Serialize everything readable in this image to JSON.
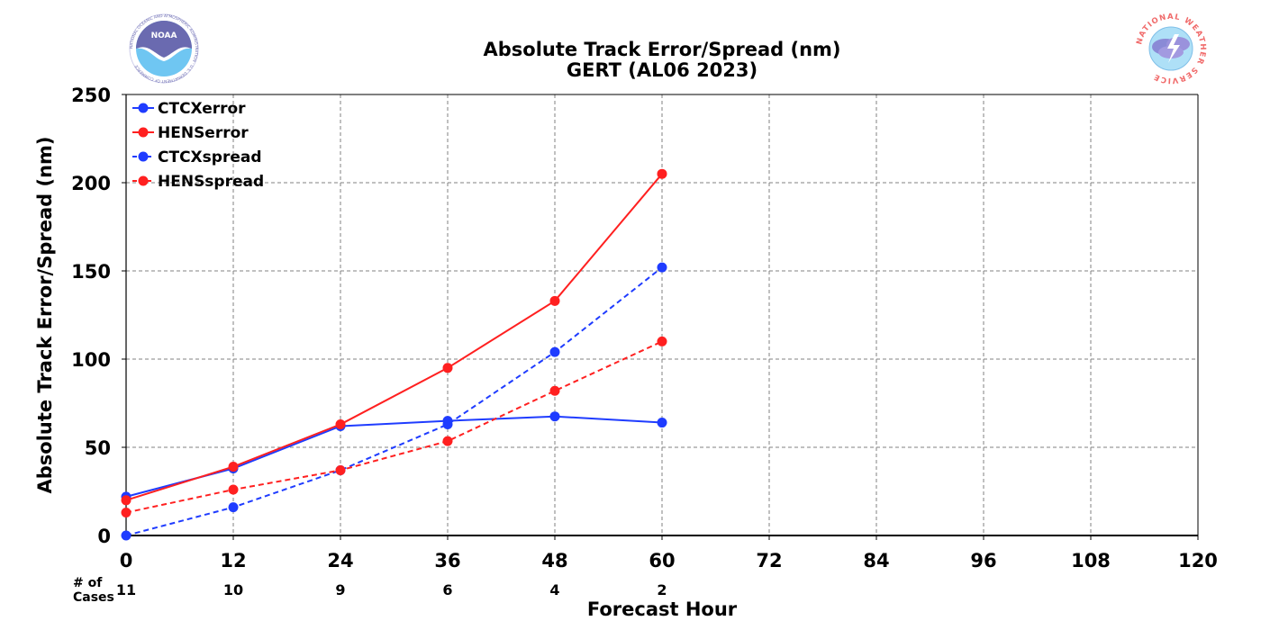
{
  "logos": {
    "left": {
      "name": "NOAA",
      "ring_text": "NATIONAL OCEANIC AND ATMOSPHERIC ADMINISTRATION · U.S. DEPARTMENT OF COMMERCE"
    },
    "right": {
      "name": "NATIONAL WEATHER SERVICE"
    }
  },
  "chart_data": {
    "type": "line",
    "title": "Absolute Track Error/Spread (nm)",
    "subtitle": "GERT (AL06 2023)",
    "xlabel": "Forecast Hour",
    "ylabel": "Absolute Track Error/Spread (nm)",
    "xlim": [
      0,
      120
    ],
    "ylim": [
      0,
      250
    ],
    "xticks": [
      0,
      12,
      24,
      36,
      48,
      60,
      72,
      84,
      96,
      108,
      120
    ],
    "yticks": [
      0,
      50,
      100,
      150,
      200,
      250
    ],
    "grid": true,
    "legend_position": "top-left",
    "cases_label": "# of\nCases",
    "cases": [
      {
        "x": 0,
        "n": "11"
      },
      {
        "x": 12,
        "n": "10"
      },
      {
        "x": 24,
        "n": "9"
      },
      {
        "x": 36,
        "n": "6"
      },
      {
        "x": 48,
        "n": "4"
      },
      {
        "x": 60,
        "n": "2"
      }
    ],
    "series": [
      {
        "name": "CTCXerror",
        "color": "#1f3cff",
        "style": "solid",
        "x": [
          0,
          12,
          24,
          36,
          48,
          60
        ],
        "y": [
          22,
          38,
          62,
          65,
          67.5,
          64
        ]
      },
      {
        "name": "HENSerror",
        "color": "#ff2020",
        "style": "solid",
        "x": [
          0,
          12,
          24,
          36,
          48,
          60
        ],
        "y": [
          20,
          39,
          63,
          95,
          133,
          205
        ]
      },
      {
        "name": "CTCXspread",
        "color": "#1f3cff",
        "style": "dashed",
        "x": [
          0,
          12,
          24,
          36,
          48,
          60
        ],
        "y": [
          0,
          16,
          37,
          63,
          104,
          152
        ]
      },
      {
        "name": "HENSspread",
        "color": "#ff2020",
        "style": "dashed",
        "x": [
          0,
          12,
          24,
          36,
          48,
          60
        ],
        "y": [
          13,
          26,
          37,
          53.5,
          82,
          110
        ]
      }
    ]
  }
}
